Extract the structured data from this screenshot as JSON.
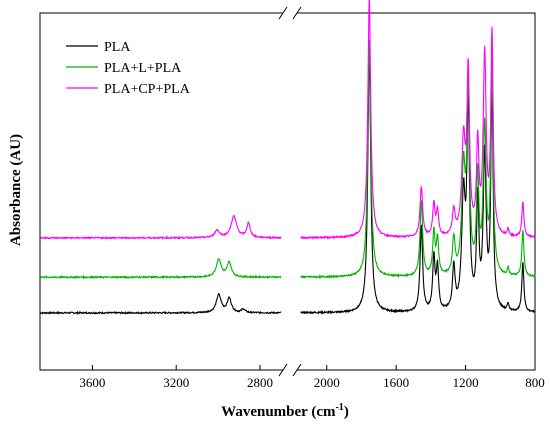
{
  "chart_data": {
    "type": "line",
    "title": "",
    "xlabel": "Wavenumber (cm",
    "xlabel_sup": "-1",
    "xlabel_suffix": ")",
    "ylabel": "Absorbance (AU)",
    "x_reversed": true,
    "x_axis_break": [
      2700,
      2160
    ],
    "xlim_left": [
      3850,
      2700
    ],
    "xlim_right": [
      2160,
      800
    ],
    "x_ticks": [
      3600,
      3200,
      2800,
      2000,
      1600,
      1200,
      800
    ],
    "x_tick_labels": [
      "3600",
      "3200",
      "2800",
      "2000",
      "1600",
      "1200",
      "800"
    ],
    "ylim": [
      0,
      1
    ],
    "y_ticks_shown": false,
    "grid": false,
    "legend_position": "top-left",
    "series": [
      {
        "name": "PLA",
        "color": "#000000",
        "baseline": 0.16,
        "peaks": [
          [
            2997,
            0.05,
            14
          ],
          [
            2947,
            0.04,
            12
          ],
          [
            2880,
            0.01,
            10
          ],
          [
            1755,
            0.73,
            10
          ],
          [
            1455,
            0.24,
            9
          ],
          [
            1383,
            0.15,
            8
          ],
          [
            1362,
            0.12,
            8
          ],
          [
            1268,
            0.12,
            9
          ],
          [
            1212,
            0.31,
            12
          ],
          [
            1185,
            0.55,
            9
          ],
          [
            1130,
            0.3,
            8
          ],
          [
            1090,
            0.43,
            10
          ],
          [
            1048,
            0.61,
            8
          ],
          [
            955,
            0.02,
            6
          ],
          [
            870,
            0.14,
            7
          ]
        ]
      },
      {
        "name": "PLA+L+PLA",
        "color": "#00b400",
        "baseline": 0.26,
        "peaks": [
          [
            2997,
            0.05,
            14
          ],
          [
            2947,
            0.04,
            12
          ],
          [
            1755,
            0.67,
            10
          ],
          [
            1455,
            0.21,
            9
          ],
          [
            1383,
            0.12,
            8
          ],
          [
            1362,
            0.1,
            8
          ],
          [
            1268,
            0.1,
            9
          ],
          [
            1212,
            0.29,
            12
          ],
          [
            1185,
            0.51,
            9
          ],
          [
            1130,
            0.27,
            8
          ],
          [
            1090,
            0.41,
            10
          ],
          [
            1048,
            0.58,
            8
          ],
          [
            955,
            0.02,
            6
          ],
          [
            870,
            0.13,
            7
          ]
        ]
      },
      {
        "name": "PLA+CP+PLA",
        "color": "#ff00ff",
        "baseline": 0.37,
        "peaks": [
          [
            3005,
            0.02,
            14
          ],
          [
            2925,
            0.06,
            16
          ],
          [
            2855,
            0.04,
            10
          ],
          [
            1755,
            0.67,
            10
          ],
          [
            1455,
            0.14,
            9
          ],
          [
            1383,
            0.09,
            8
          ],
          [
            1362,
            0.07,
            8
          ],
          [
            1268,
            0.07,
            9
          ],
          [
            1212,
            0.26,
            12
          ],
          [
            1185,
            0.45,
            9
          ],
          [
            1130,
            0.25,
            8
          ],
          [
            1090,
            0.5,
            10
          ],
          [
            1048,
            0.56,
            8
          ],
          [
            955,
            0.02,
            6
          ],
          [
            870,
            0.1,
            7
          ]
        ]
      }
    ]
  }
}
